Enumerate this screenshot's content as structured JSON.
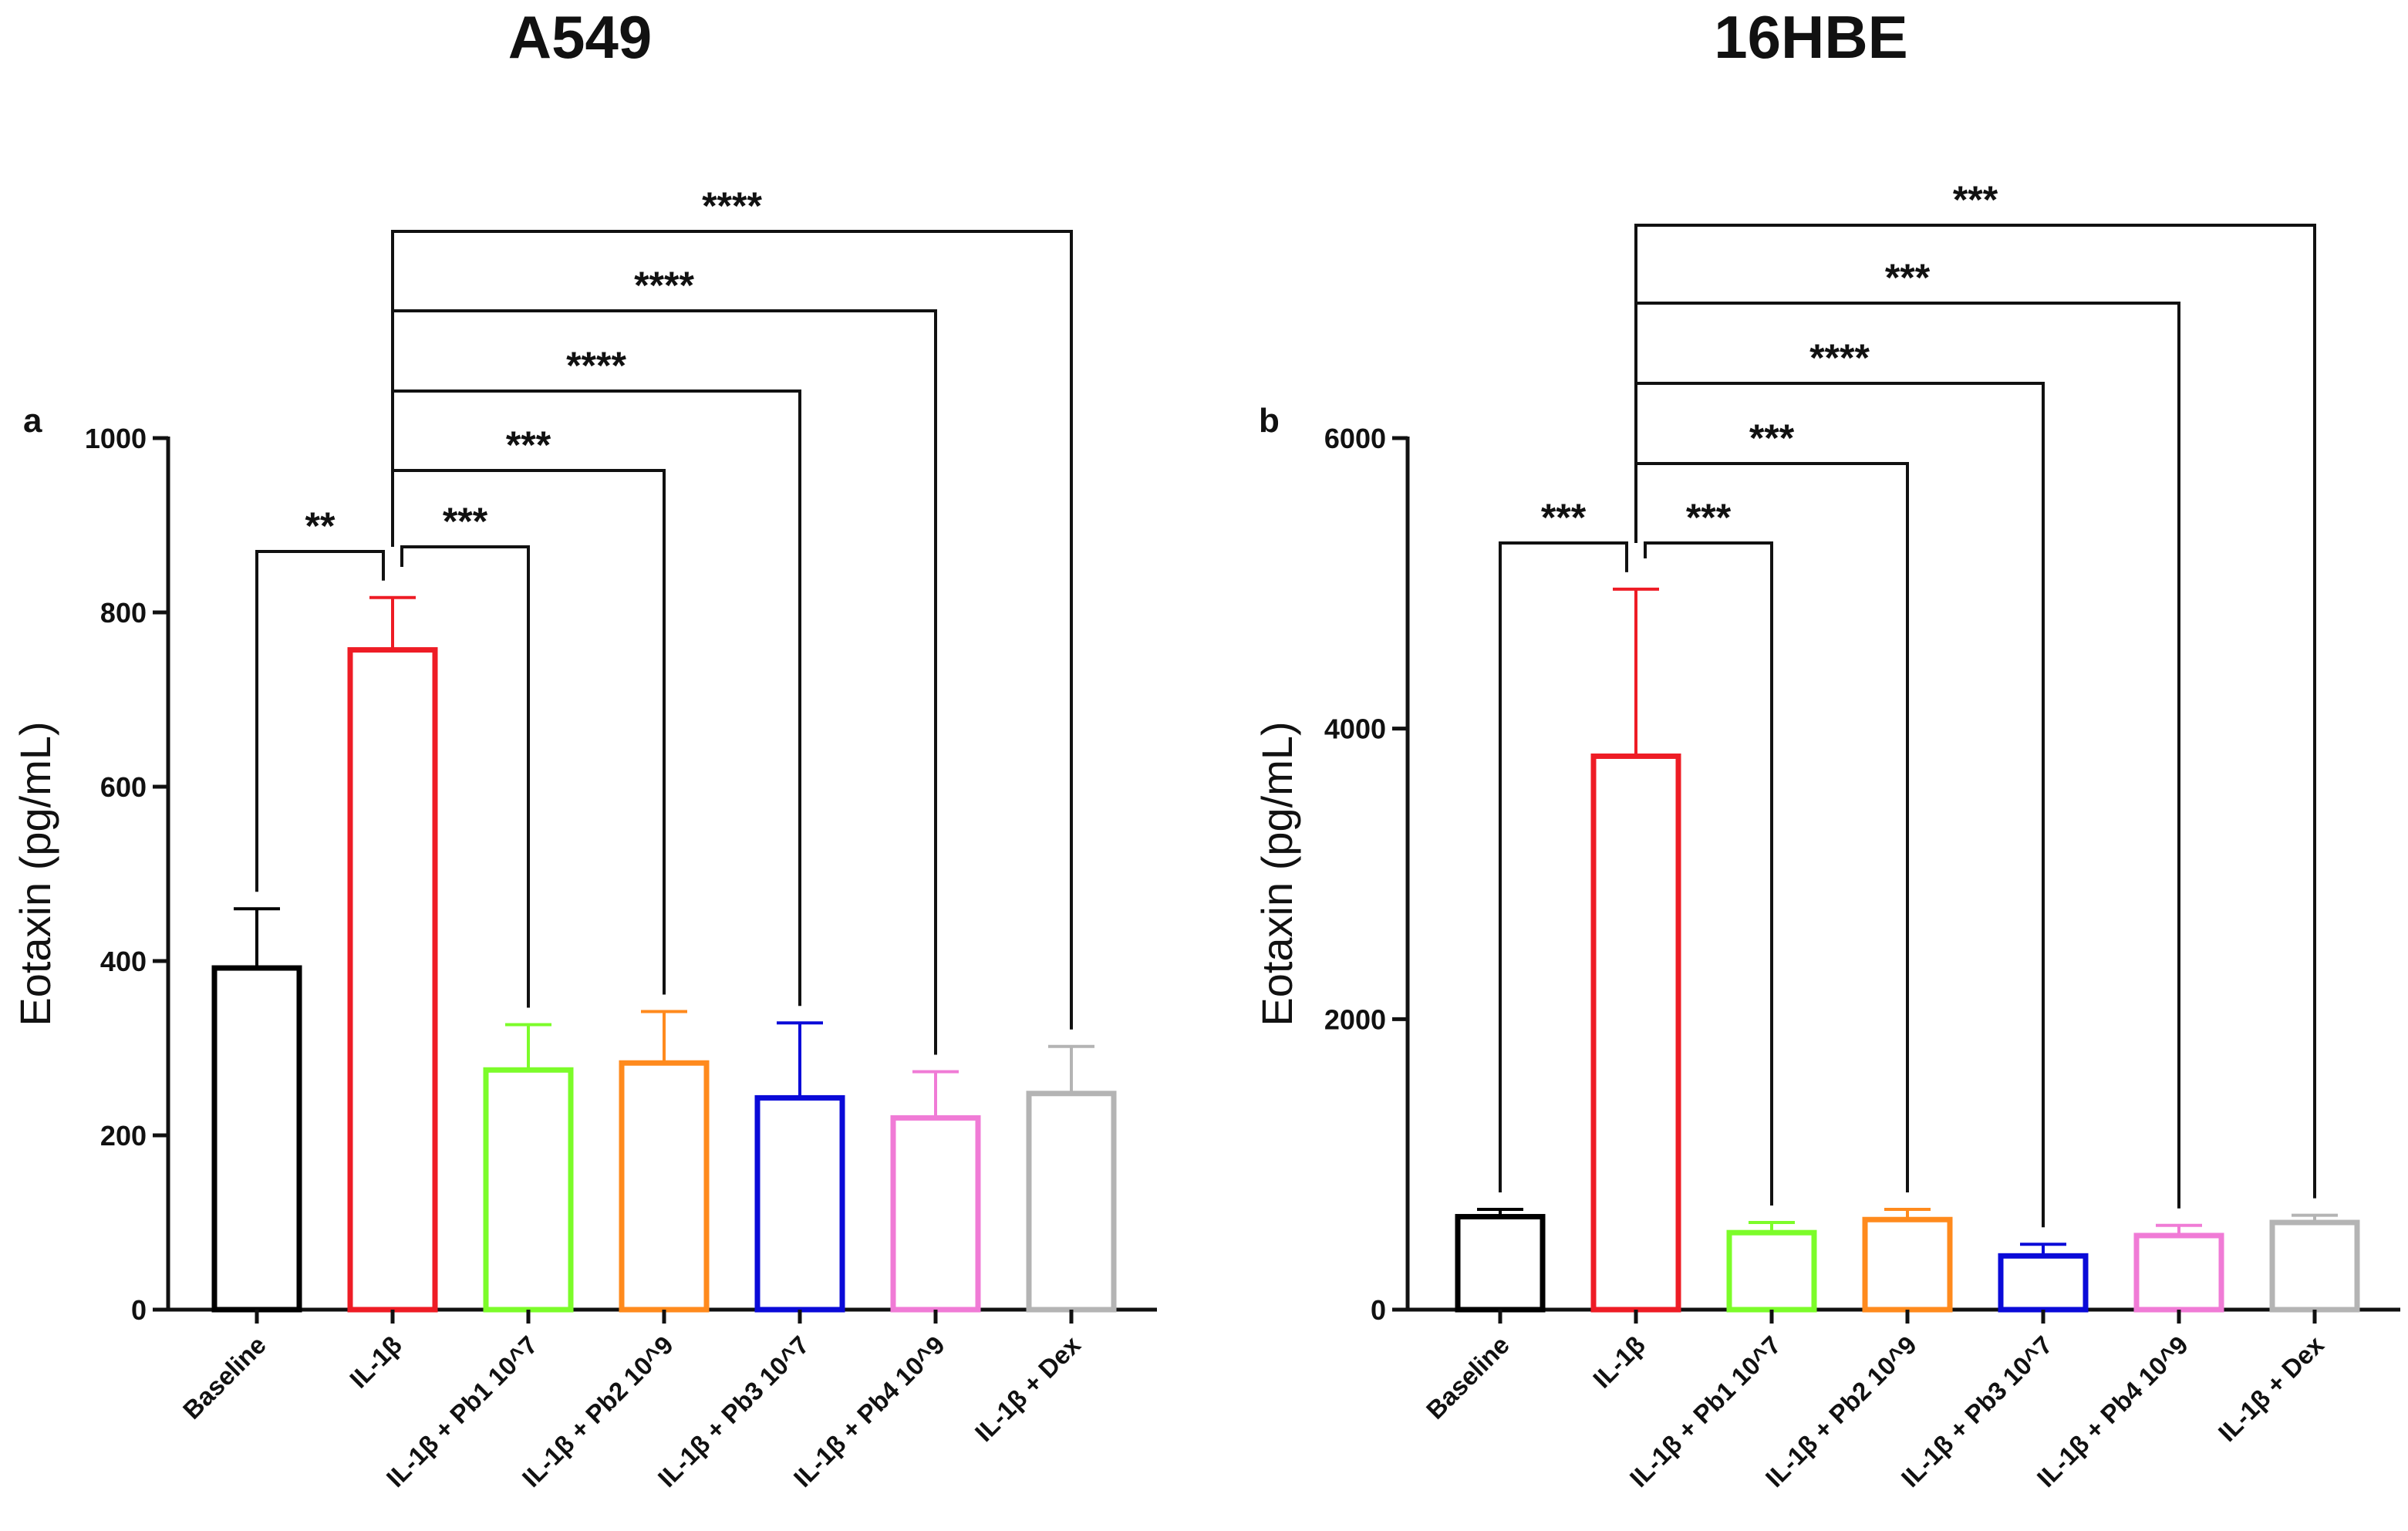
{
  "chart_data": [
    {
      "type": "bar",
      "panel": "a",
      "title": "A549",
      "xlabel": "",
      "ylabel": "Eotaxin (pg/mL)",
      "ylim": [
        0,
        1000
      ],
      "yticks": [
        0,
        200,
        400,
        600,
        800,
        1000
      ],
      "categories": [
        "Baseline",
        "IL-1β",
        "IL-1β + Pb1 10^7",
        "IL-1β + Pb2 10^9",
        "IL-1β + Pb3 10^7",
        "IL-1β + Pb4 10^9",
        "IL-1β + Dex"
      ],
      "values": [
        392,
        757,
        275,
        283,
        243,
        220,
        248
      ],
      "error_upper": [
        460,
        817,
        327,
        342,
        329,
        273,
        302
      ],
      "colors": [
        "#000000",
        "#ee1c25",
        "#7cfc2a",
        "#ff8a1d",
        "#0a0ad8",
        "#f07bd6",
        "#b4b4b4"
      ],
      "bar_fill": "none",
      "comparisons": [
        {
          "from": 0,
          "to": 1,
          "label": "**"
        },
        {
          "from": 1,
          "to": 2,
          "label": "***"
        },
        {
          "from": 1,
          "to": 3,
          "label": "***"
        },
        {
          "from": 1,
          "to": 4,
          "label": "****"
        },
        {
          "from": 1,
          "to": 5,
          "label": "****"
        },
        {
          "from": 1,
          "to": 6,
          "label": "****"
        }
      ]
    },
    {
      "type": "bar",
      "panel": "b",
      "title": "16HBE",
      "xlabel": "",
      "ylabel": "Eotaxin (pg/mL)",
      "ylim": [
        0,
        6000
      ],
      "yticks": [
        0,
        2000,
        4000,
        6000
      ],
      "categories": [
        "Baseline",
        "IL-1β",
        "IL-1β + Pb1 10^7",
        "IL-1β + Pb2 10^9",
        "IL-1β + Pb3 10^7",
        "IL-1β + Pb4 10^9",
        "IL-1β + Dex"
      ],
      "values": [
        640,
        3810,
        530,
        620,
        370,
        510,
        600
      ],
      "error_upper": [
        690,
        4960,
        600,
        690,
        450,
        580,
        650
      ],
      "colors": [
        "#000000",
        "#ee1c25",
        "#7cfc2a",
        "#ff8a1d",
        "#0a0ad8",
        "#f07bd6",
        "#b4b4b4"
      ],
      "bar_fill": "none",
      "comparisons": [
        {
          "from": 0,
          "to": 1,
          "label": "***"
        },
        {
          "from": 1,
          "to": 2,
          "label": "***"
        },
        {
          "from": 1,
          "to": 3,
          "label": "***"
        },
        {
          "from": 1,
          "to": 4,
          "label": "****"
        },
        {
          "from": 1,
          "to": 5,
          "label": "***"
        },
        {
          "from": 1,
          "to": 6,
          "label": "***"
        }
      ]
    }
  ]
}
